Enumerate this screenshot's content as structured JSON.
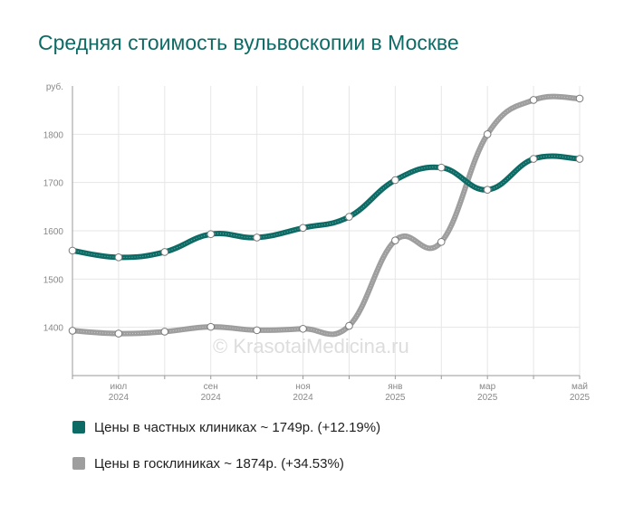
{
  "title": "Средняя стоимость вульвоскопии в Москве",
  "watermark": "© KrasotaiMedicina.ru",
  "colors": {
    "private": "#0d6b66",
    "public": "#9e9e9e",
    "title": "#0d6b66"
  },
  "chart_data": {
    "type": "line",
    "unit_label": "руб.",
    "x": [
      "2024-06",
      "2024-07",
      "2024-08",
      "2024-09",
      "2024-10",
      "2024-11",
      "2024-12",
      "2025-01",
      "2025-02",
      "2025-03",
      "2025-04",
      "2025-05"
    ],
    "x_tick_labels": [
      {
        "at": 1,
        "month": "июл",
        "year": "2024"
      },
      {
        "at": 3,
        "month": "сен",
        "year": "2024"
      },
      {
        "at": 5,
        "month": "ноя",
        "year": "2024"
      },
      {
        "at": 7,
        "month": "янв",
        "year": "2025"
      },
      {
        "at": 9,
        "month": "мар",
        "year": "2025"
      },
      {
        "at": 11,
        "month": "май",
        "year": "2025"
      }
    ],
    "y_ticks": [
      1400,
      1500,
      1600,
      1700,
      1800
    ],
    "ylim": [
      1300,
      1900
    ],
    "grid": true,
    "legend_position": "bottom-left",
    "series": [
      {
        "name": "Цены в частных клиниках ~ 1749р. (+12.19%)",
        "color": "#0d6b66",
        "values": [
          1559,
          1545,
          1556,
          1593,
          1586,
          1606,
          1629,
          1705,
          1731,
          1685,
          1749,
          1749
        ]
      },
      {
        "name": "Цены в госклиниках ~ 1874р. (+34.53%)",
        "color": "#9e9e9e",
        "values": [
          1393,
          1387,
          1391,
          1401,
          1394,
          1397,
          1403,
          1580,
          1577,
          1800,
          1871,
          1874
        ]
      }
    ]
  }
}
